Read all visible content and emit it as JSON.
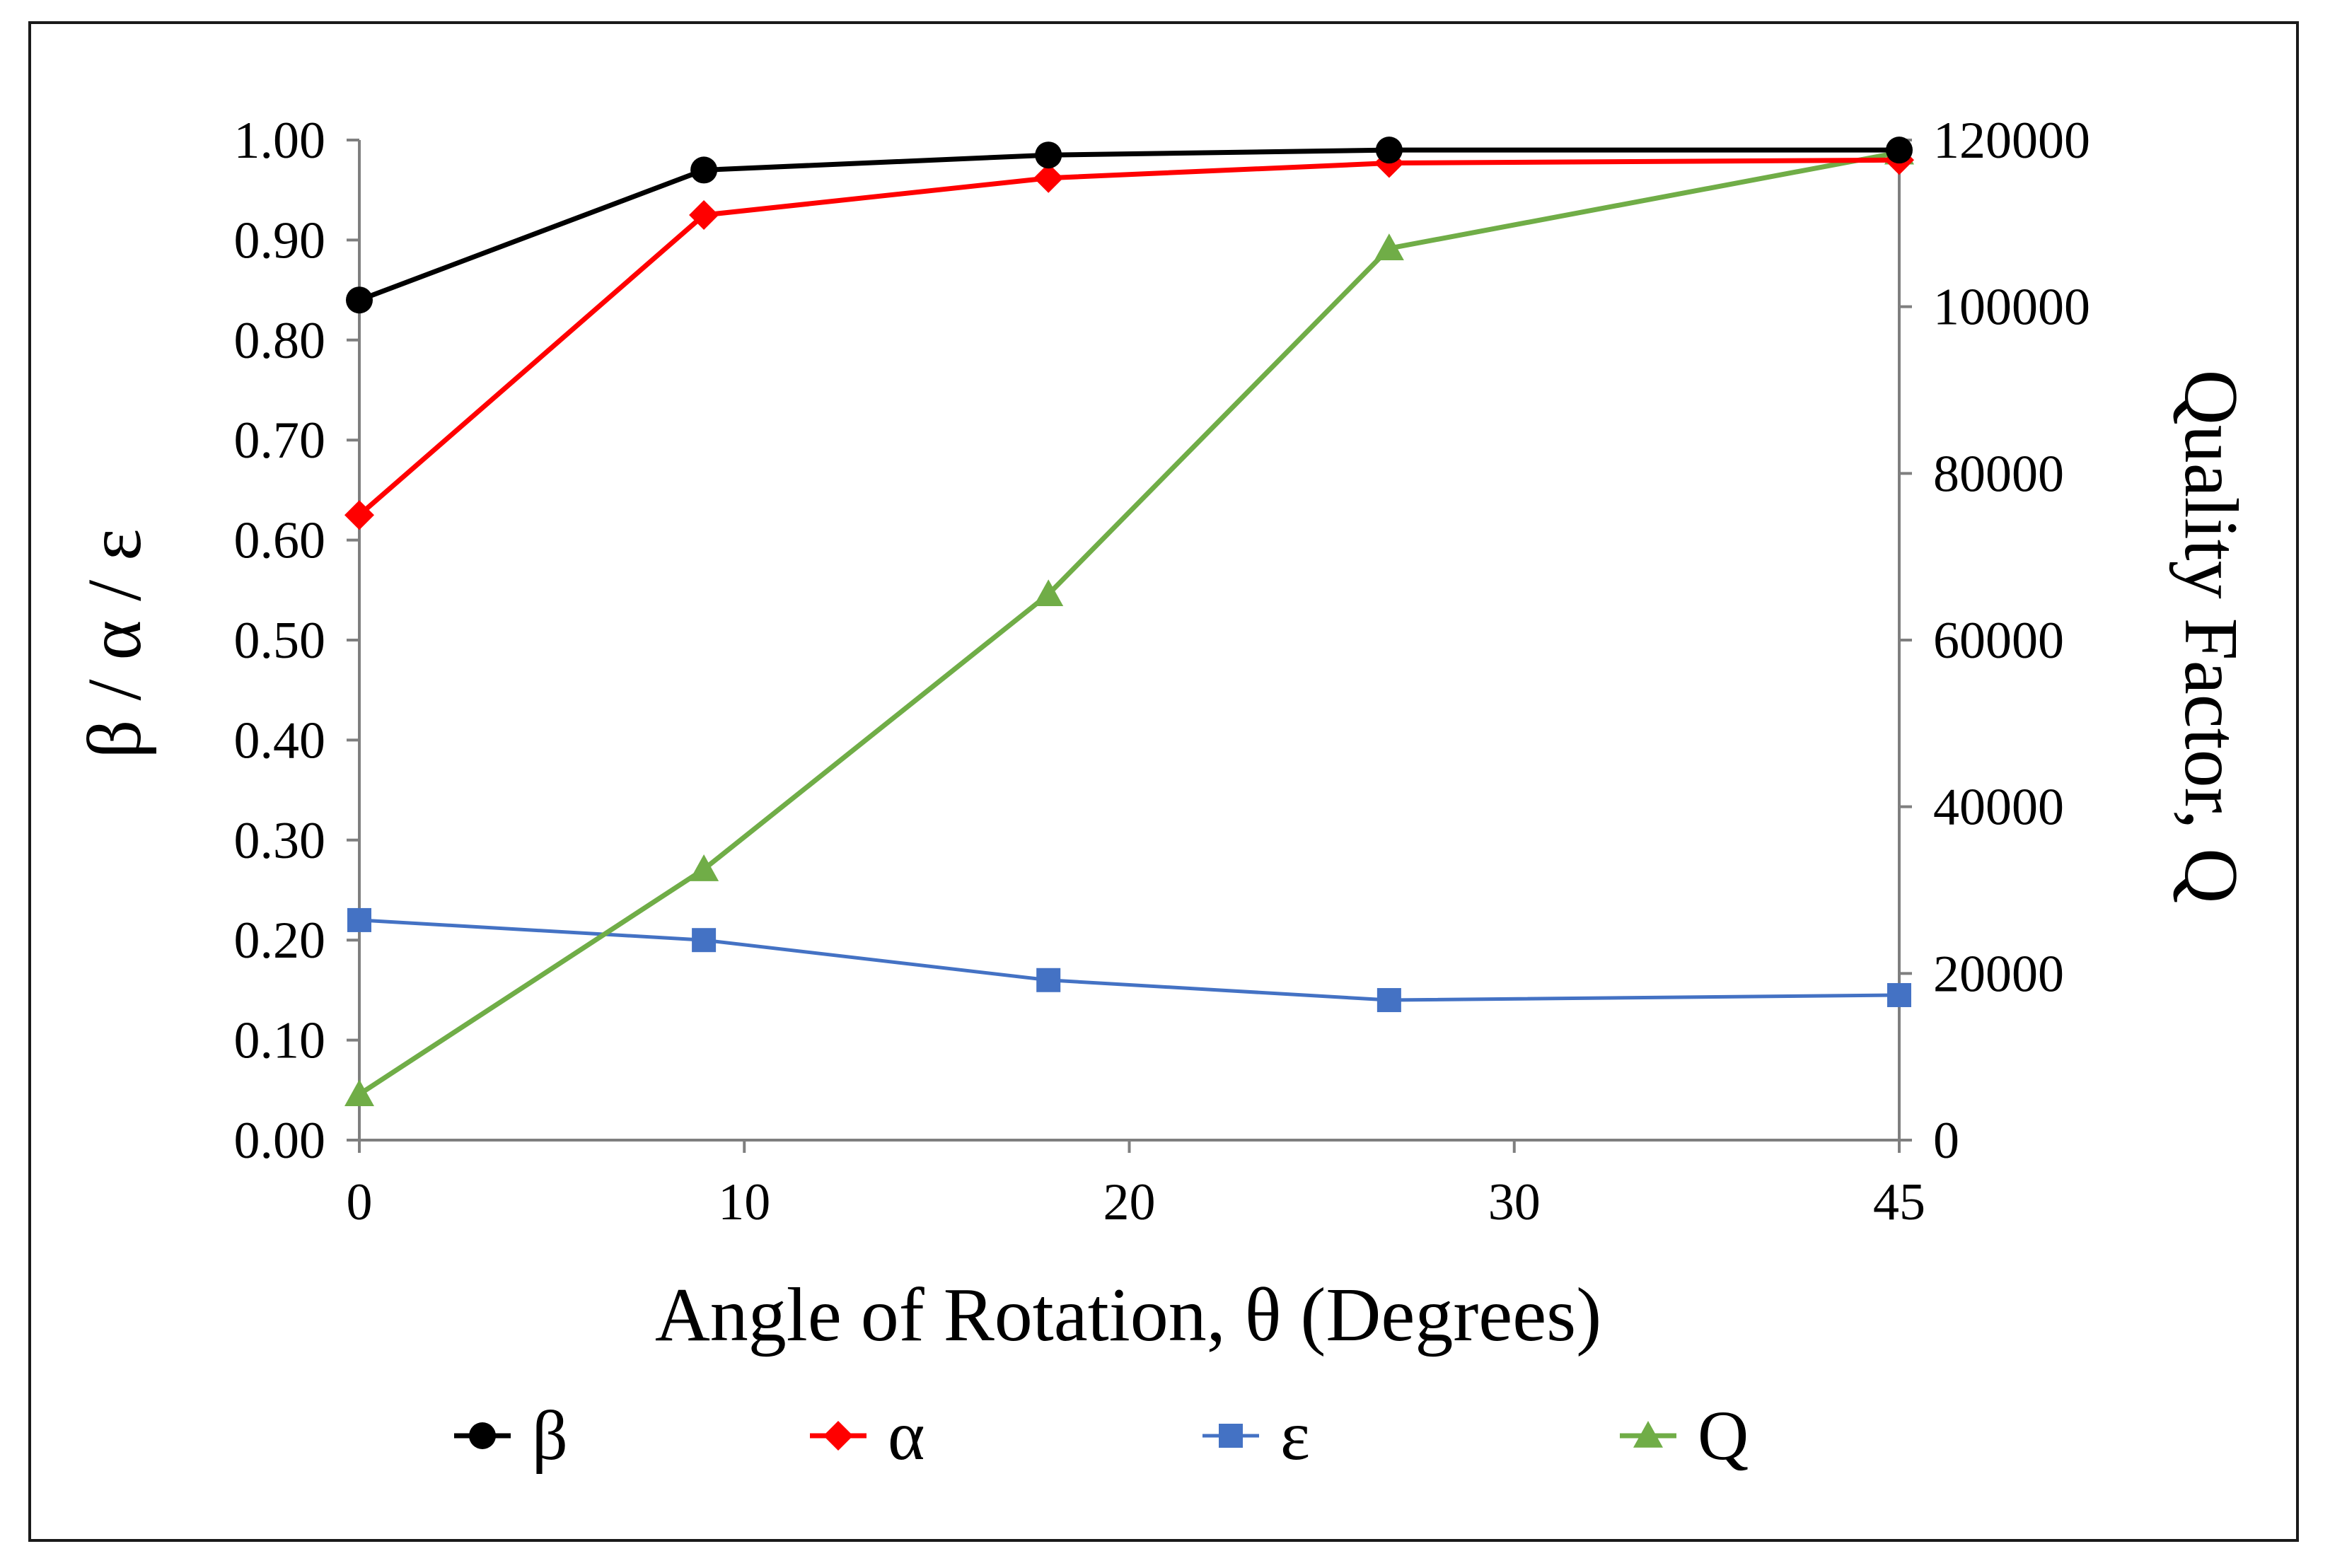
{
  "chart_data": {
    "type": "line",
    "title": "",
    "xlabel": "Angle of Rotation, θ (Degrees)",
    "ylabel": "β / α / ε",
    "y2label": "Quality Factor, Q",
    "categories": [
      "0",
      "10",
      "20",
      "30",
      "45"
    ],
    "xlim": [
      0,
      4
    ],
    "ylim": [
      0,
      1
    ],
    "y2lim": [
      0,
      120000
    ],
    "yticks": [
      "0.00",
      "0.10",
      "0.20",
      "0.30",
      "0.40",
      "0.50",
      "0.60",
      "0.70",
      "0.80",
      "0.90",
      "1.00"
    ],
    "y2ticks": [
      "0",
      "20000",
      "40000",
      "60000",
      "80000",
      "100000",
      "120000"
    ],
    "grid": false,
    "legend_position": "bottom",
    "series": [
      {
        "name": "β",
        "axis": "left",
        "color": "#000000",
        "marker": "circle",
        "x": [
          0,
          0.895,
          1.79,
          2.675,
          4
        ],
        "values": [
          0.84,
          0.97,
          0.985,
          0.99,
          0.99
        ]
      },
      {
        "name": "α",
        "axis": "left",
        "color": "#ff0000",
        "marker": "diamond",
        "x": [
          0,
          0.895,
          1.79,
          2.675,
          4
        ],
        "values": [
          0.625,
          0.925,
          0.962,
          0.977,
          0.98
        ]
      },
      {
        "name": "ε",
        "axis": "left",
        "color": "#4472c4",
        "marker": "square",
        "x": [
          0,
          0.895,
          1.79,
          2.675,
          4
        ],
        "values": [
          0.22,
          0.2,
          0.16,
          0.14,
          0.145
        ]
      },
      {
        "name": "Q",
        "axis": "right",
        "color": "#70ad47",
        "marker": "triangle",
        "x": [
          0,
          0.895,
          1.79,
          2.675,
          4
        ],
        "values": [
          5500,
          32500,
          65500,
          107000,
          118500
        ]
      }
    ]
  }
}
